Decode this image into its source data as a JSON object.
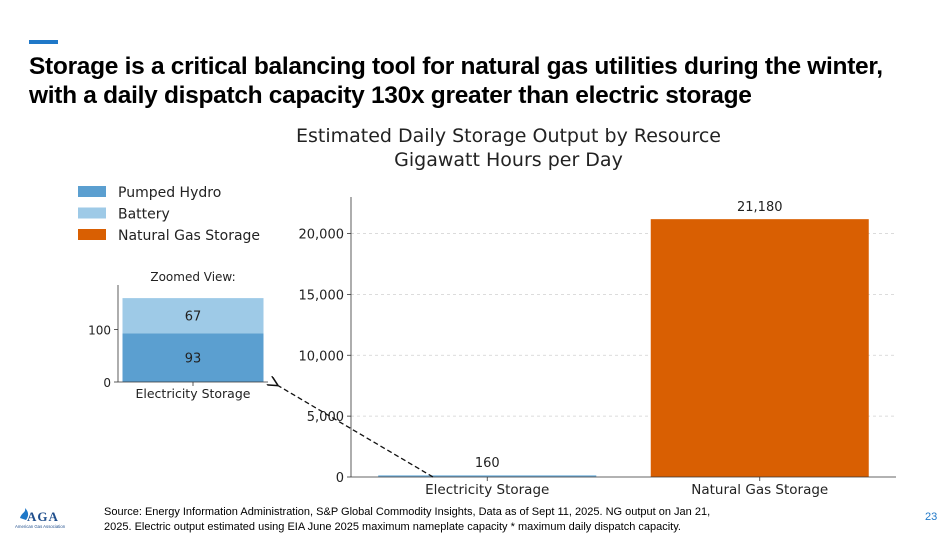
{
  "slide": {
    "headline_line1": "Storage is a critical balancing tool for natural gas utilities during the winter,",
    "headline_line2": "with a daily dispatch capacity 130x greater than electric storage",
    "source_line1": "Source: Energy Information Administration, S&P Global Commodity Insights, Data as of Sept 11, 2025. NG output on Jan 21,",
    "source_line2": "2025. Electric output estimated using EIA June 2025 maximum nameplate capacity * maximum daily dispatch capacity.",
    "page_number": "23",
    "logo_text": "AGA",
    "logo_subtext": "American Gas Association",
    "accent_color": "#1f78c8"
  },
  "chart_data": [
    {
      "type": "bar",
      "stacked": true,
      "title": "Estimated Daily Storage Output by Resource",
      "subtitle": "Gigawatt Hours per Day",
      "categories": [
        "Electricity Storage",
        "Natural Gas Storage"
      ],
      "series": [
        {
          "name": "Pumped Hydro",
          "color": "#5b9fd0",
          "values": [
            93,
            0
          ]
        },
        {
          "name": "Battery",
          "color": "#9ecae7",
          "values": [
            67,
            0
          ]
        },
        {
          "name": "Natural Gas Storage",
          "color": "#d95f02",
          "values": [
            0,
            21180
          ]
        }
      ],
      "data_labels": [
        "160",
        "21,180"
      ],
      "ylim": [
        0,
        23000
      ],
      "yticks": [
        0,
        5000,
        10000,
        15000,
        20000
      ],
      "ytick_labels": [
        "0",
        "5,000",
        "10,000",
        "15,000",
        "20,000"
      ],
      "grid": "horizontal dashed",
      "legend_position": "top-left"
    },
    {
      "type": "bar",
      "stacked": true,
      "title": "Zoomed View:",
      "categories": [
        "Electricity Storage"
      ],
      "series": [
        {
          "name": "Pumped Hydro",
          "color": "#5b9fd0",
          "values": [
            93
          ]
        },
        {
          "name": "Battery",
          "color": "#9ecae7",
          "values": [
            67
          ]
        }
      ],
      "segment_labels": [
        "93",
        "67"
      ],
      "ylim": [
        0,
        185
      ],
      "yticks": [
        0,
        100
      ],
      "ytick_labels": [
        "0",
        "100"
      ]
    }
  ]
}
